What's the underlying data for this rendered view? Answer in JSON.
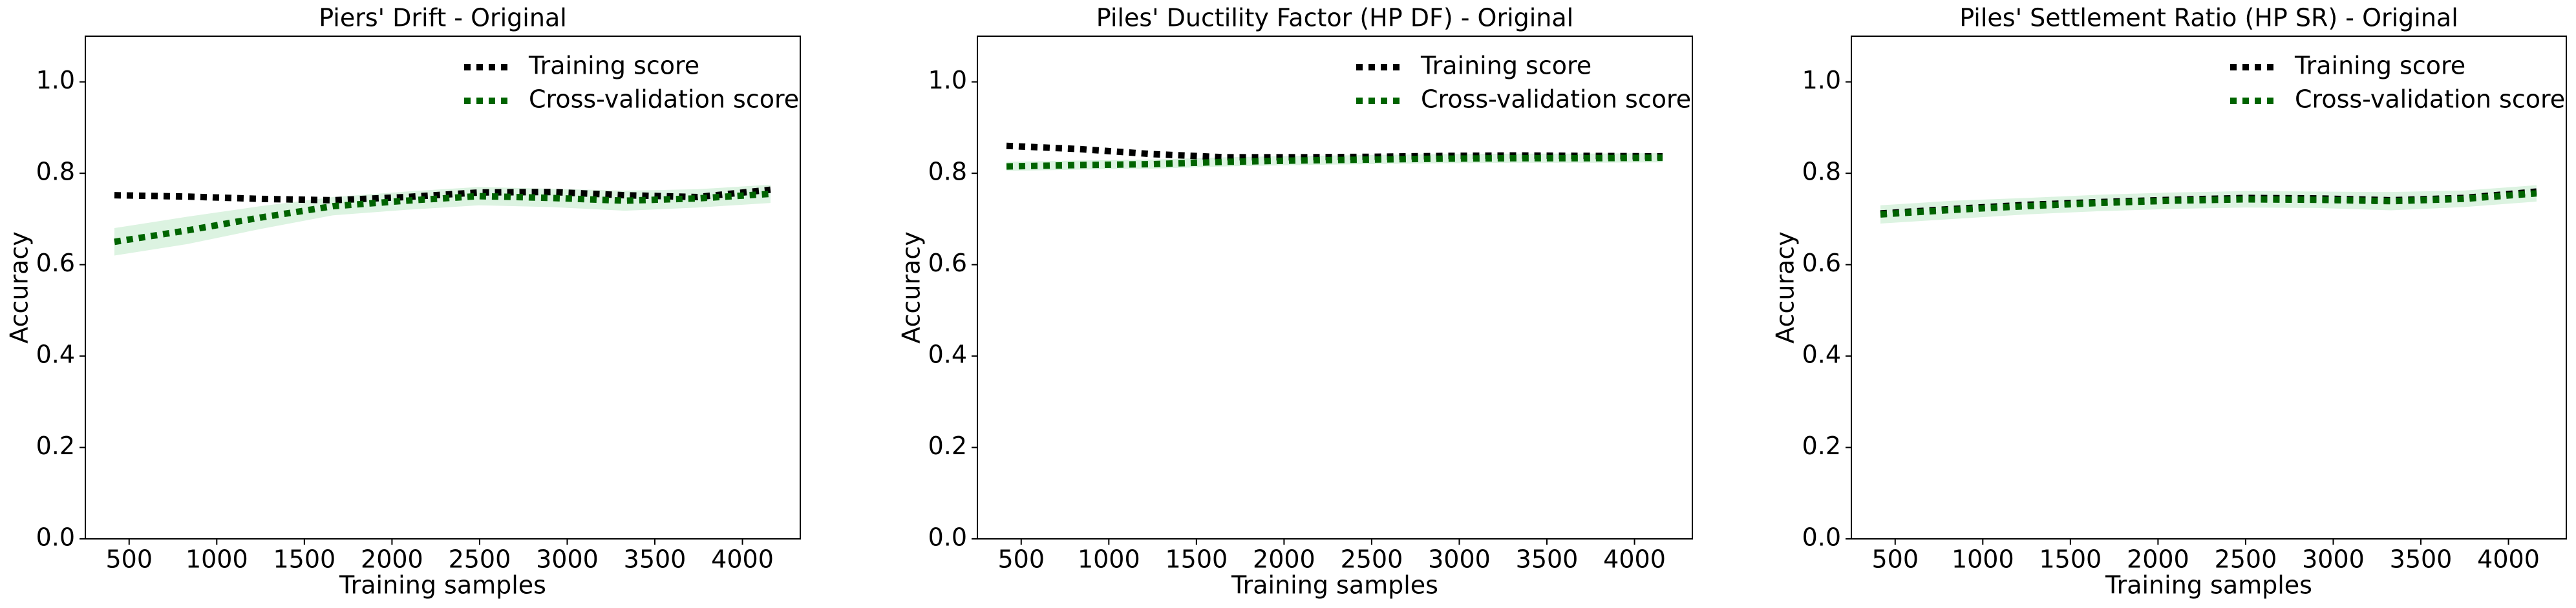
{
  "chart_data": [
    {
      "type": "line",
      "title": "Piers' Drift - Original",
      "xlabel": "Training samples",
      "ylabel": "Accuracy",
      "x": [
        416,
        832,
        1248,
        1664,
        2080,
        2496,
        2912,
        3328,
        3744,
        4160
      ],
      "series": [
        {
          "name": "Training score",
          "color": "#000000",
          "values": [
            0.752,
            0.749,
            0.744,
            0.741,
            0.748,
            0.758,
            0.759,
            0.752,
            0.748,
            0.764
          ]
        },
        {
          "name": "Cross-validation score",
          "color": "#006400",
          "values": [
            0.65,
            0.675,
            0.703,
            0.728,
            0.74,
            0.75,
            0.746,
            0.74,
            0.745,
            0.755
          ],
          "std": [
            0.03,
            0.03,
            0.025,
            0.02,
            0.02,
            0.02,
            0.02,
            0.022,
            0.02,
            0.02
          ],
          "fill_color": "#dcf3e1"
        }
      ],
      "xlim": [
        250,
        4330
      ],
      "ylim": [
        0,
        1.1
      ],
      "xticks": [
        500,
        1000,
        1500,
        2000,
        2500,
        3000,
        3500,
        4000
      ],
      "yticks": [
        {
          "value": 0,
          "label": "0.0"
        },
        {
          "value": 0.2,
          "label": "0.2"
        },
        {
          "value": 0.4,
          "label": "0.4"
        },
        {
          "value": 0.6,
          "label": "0.6"
        },
        {
          "value": 0.8,
          "label": "0.8"
        },
        {
          "value": 1,
          "label": "1.0"
        }
      ],
      "legend": "upper right"
    },
    {
      "type": "line",
      "title": "Piles' Ductility Factor (HP DF) - Original",
      "xlabel": "Training samples",
      "ylabel": "Accuracy",
      "x": [
        416,
        832,
        1248,
        1664,
        2080,
        2496,
        2912,
        3328,
        3744,
        4160
      ],
      "series": [
        {
          "name": "Training score",
          "color": "#000000",
          "values": [
            0.86,
            0.853,
            0.842,
            0.835,
            0.835,
            0.836,
            0.838,
            0.839,
            0.838,
            0.837
          ]
        },
        {
          "name": "Cross-validation score",
          "color": "#006400",
          "values": [
            0.815,
            0.818,
            0.82,
            0.825,
            0.828,
            0.83,
            0.832,
            0.833,
            0.833,
            0.834
          ],
          "std": [
            0.01,
            0.01,
            0.01,
            0.01,
            0.01,
            0.01,
            0.01,
            0.01,
            0.01,
            0.01
          ],
          "fill_color": "#dcf3e1"
        }
      ],
      "xlim": [
        250,
        4330
      ],
      "ylim": [
        0,
        1.1
      ],
      "xticks": [
        500,
        1000,
        1500,
        2000,
        2500,
        3000,
        3500,
        4000
      ],
      "yticks": [
        {
          "value": 0,
          "label": "0.0"
        },
        {
          "value": 0.2,
          "label": "0.2"
        },
        {
          "value": 0.4,
          "label": "0.4"
        },
        {
          "value": 0.6,
          "label": "0.6"
        },
        {
          "value": 0.8,
          "label": "0.8"
        },
        {
          "value": 1,
          "label": "1.0"
        }
      ],
      "legend": "upper right"
    },
    {
      "type": "line",
      "title": "Piles' Settlement Ratio (HP SR) - Original",
      "xlabel": "Training samples",
      "ylabel": "Accuracy",
      "x": [
        416,
        832,
        1248,
        1664,
        2080,
        2496,
        2912,
        3328,
        3744,
        4160
      ],
      "series": [
        {
          "name": "Training score",
          "color": "#000000",
          "values": [
            0.712,
            0.722,
            0.731,
            0.737,
            0.742,
            0.746,
            0.745,
            0.741,
            0.746,
            0.76
          ]
        },
        {
          "name": "Cross-validation score",
          "color": "#006400",
          "values": [
            0.71,
            0.72,
            0.728,
            0.735,
            0.74,
            0.743,
            0.742,
            0.739,
            0.744,
            0.756
          ],
          "std": [
            0.02,
            0.02,
            0.018,
            0.018,
            0.018,
            0.018,
            0.018,
            0.02,
            0.018,
            0.018
          ],
          "fill_color": "#dcf3e1"
        }
      ],
      "xlim": [
        250,
        4330
      ],
      "ylim": [
        0,
        1.1
      ],
      "xticks": [
        500,
        1000,
        1500,
        2000,
        2500,
        3000,
        3500,
        4000
      ],
      "yticks": [
        {
          "value": 0,
          "label": "0.0"
        },
        {
          "value": 0.2,
          "label": "0.2"
        },
        {
          "value": 0.4,
          "label": "0.4"
        },
        {
          "value": 0.6,
          "label": "0.6"
        },
        {
          "value": 0.8,
          "label": "0.8"
        },
        {
          "value": 1,
          "label": "1.0"
        }
      ],
      "legend": "upper right"
    }
  ]
}
